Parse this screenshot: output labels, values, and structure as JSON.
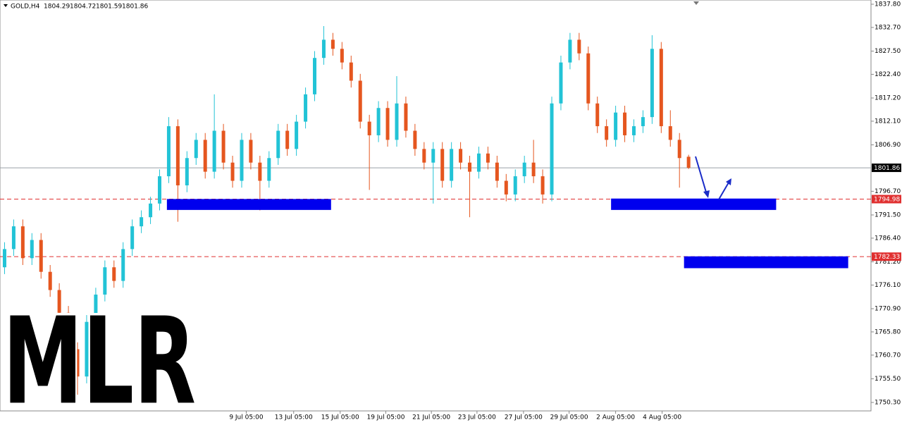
{
  "chart_data": {
    "type": "candlestick",
    "symbol": "GOLD,H4",
    "header_ohlc": [
      1804.29,
      1804.72,
      1801.59,
      1801.86
    ],
    "watermark": "MLR",
    "up_color": "#22c3d6",
    "down_color": "#e5561f",
    "x": [
      0,
      1,
      2,
      3,
      4,
      5,
      6,
      7,
      8,
      9,
      10,
      11,
      12,
      13,
      14,
      15,
      16,
      17,
      18,
      19,
      20,
      21,
      22,
      23,
      24,
      25,
      26,
      27,
      28,
      29,
      30,
      31,
      32,
      33,
      34,
      35,
      36,
      37,
      38,
      39,
      40,
      41,
      42,
      43,
      44,
      45,
      46,
      47,
      48,
      49,
      50,
      51,
      52,
      53,
      54,
      55,
      56,
      57,
      58,
      59,
      60,
      61,
      62,
      63,
      64,
      65,
      66,
      67,
      68,
      69,
      70,
      71,
      72,
      73,
      74,
      75
    ],
    "open": [
      1780,
      1784,
      1789,
      1782,
      1786,
      1779,
      1775,
      1770,
      1762,
      1756,
      1768,
      1774,
      1780,
      1777,
      1784,
      1789,
      1791,
      1794,
      1800,
      1811,
      1798,
      1804,
      1808,
      1801,
      1810,
      1803,
      1799,
      1808,
      1803,
      1799,
      1804,
      1810,
      1806,
      1812,
      1818,
      1826,
      1830,
      1828,
      1825,
      1821,
      1812,
      1809,
      1815,
      1808,
      1816,
      1810,
      1806,
      1803,
      1806,
      1799,
      1806,
      1803,
      1801,
      1805,
      1803,
      1799,
      1796,
      1800,
      1803,
      1800,
      1796,
      1816,
      1825,
      1830,
      1827,
      1816,
      1811,
      1808,
      1814,
      1809,
      1811,
      1813,
      1828,
      1811,
      1808,
      1804.29
    ],
    "high": [
      1785.5,
      1790.5,
      1790.5,
      1787.5,
      1787.5,
      1780.5,
      1776.5,
      1771.5,
      1763.5,
      1769.5,
      1775.5,
      1781.5,
      1781.5,
      1785.5,
      1790.5,
      1792.5,
      1795.5,
      1801.5,
      1813,
      1812.5,
      1805.5,
      1809.5,
      1809.5,
      1818,
      1811.5,
      1804.5,
      1809.5,
      1809.5,
      1804.5,
      1805.5,
      1811.5,
      1811.5,
      1813.5,
      1819.5,
      1827.5,
      1833,
      1831.5,
      1829.5,
      1826.5,
      1822.5,
      1813.5,
      1816.5,
      1816.5,
      1822,
      1817.5,
      1811.5,
      1807.5,
      1807.5,
      1807.5,
      1807.5,
      1807.5,
      1804.5,
      1806.5,
      1806.5,
      1804.5,
      1800.5,
      1801.5,
      1804.5,
      1808,
      1801.5,
      1817.5,
      1826.5,
      1831.5,
      1831.5,
      1828.5,
      1817.5,
      1812.5,
      1815.5,
      1815.5,
      1812.5,
      1814.5,
      1831,
      1829.5,
      1814.5,
      1809.5,
      1804.72
    ],
    "low": [
      1778.5,
      1782.5,
      1780.5,
      1780.5,
      1777.5,
      1773.5,
      1768.5,
      1760.5,
      1752,
      1754.5,
      1766.5,
      1772.5,
      1775.5,
      1775.5,
      1782.5,
      1787.5,
      1789.5,
      1792.5,
      1798.5,
      1790,
      1796.5,
      1802.5,
      1799.5,
      1799.5,
      1801.5,
      1797.5,
      1797.5,
      1801.5,
      1792.5,
      1797.5,
      1802.5,
      1804.5,
      1804.5,
      1810.5,
      1816.5,
      1824.5,
      1826.5,
      1823.5,
      1819.5,
      1810.5,
      1797,
      1807.5,
      1806.5,
      1806.5,
      1808.5,
      1804.5,
      1801.5,
      1794,
      1797.5,
      1797.5,
      1801.5,
      1791,
      1799.5,
      1801.5,
      1797.5,
      1794.5,
      1794.5,
      1798.5,
      1798.5,
      1794,
      1794.5,
      1814.5,
      1823.5,
      1825.5,
      1814.5,
      1809.5,
      1806.5,
      1806.5,
      1807.5,
      1807.5,
      1809.5,
      1811.5,
      1809.5,
      1806.5,
      1797.5,
      1801.59
    ],
    "close": [
      1784,
      1789,
      1782,
      1786,
      1779,
      1775,
      1770,
      1762,
      1756,
      1768,
      1774,
      1780,
      1777,
      1784,
      1789,
      1791,
      1794,
      1800,
      1811,
      1798,
      1804,
      1808,
      1801,
      1810,
      1803,
      1799,
      1808,
      1803,
      1799,
      1804,
      1810,
      1806,
      1812,
      1818,
      1826,
      1830,
      1828,
      1825,
      1821,
      1812,
      1809,
      1815,
      1808,
      1816,
      1810,
      1806,
      1803,
      1806,
      1799,
      1806,
      1803,
      1801,
      1805,
      1803,
      1799,
      1796,
      1800,
      1803,
      1800,
      1796,
      1816,
      1825,
      1830,
      1827,
      1816,
      1811,
      1808,
      1814,
      1809,
      1811,
      1813,
      1828,
      1811,
      1808,
      1804,
      1801.86
    ],
    "xlim": [
      -0.5,
      95
    ],
    "ylim": [
      1748.44,
      1838.73
    ],
    "xticks": [
      {
        "value": 26.5,
        "label": "9 Jul 05:00"
      },
      {
        "value": 31.7,
        "label": "13 Jul 05:00"
      },
      {
        "value": 36.8,
        "label": "15 Jul 05:00"
      },
      {
        "value": 41.8,
        "label": "19 Jul 05:00"
      },
      {
        "value": 46.8,
        "label": "21 Jul 05:00"
      },
      {
        "value": 51.8,
        "label": "23 Jul 05:00"
      },
      {
        "value": 56.9,
        "label": "27 Jul 05:00"
      },
      {
        "value": 61.9,
        "label": "29 Jul 05:00"
      },
      {
        "value": 67.0,
        "label": "2 Aug 05:00"
      },
      {
        "value": 72.1,
        "label": "4 Aug 05:00"
      }
    ],
    "yticks": [
      {
        "value": 1837.8,
        "label": "1837.80"
      },
      {
        "value": 1832.7,
        "label": "1832.70"
      },
      {
        "value": 1827.5,
        "label": "1827.50"
      },
      {
        "value": 1822.4,
        "label": "1822.40"
      },
      {
        "value": 1817.2,
        "label": "1817.20"
      },
      {
        "value": 1812.1,
        "label": "1812.10"
      },
      {
        "value": 1806.9,
        "label": "1806.90"
      },
      {
        "value": 1796.7,
        "label": "1796.70"
      },
      {
        "value": 1791.5,
        "label": "1791.50"
      },
      {
        "value": 1786.4,
        "label": "1786.40"
      },
      {
        "value": 1781.2,
        "label": "1781.20"
      },
      {
        "value": 1776.1,
        "label": "1776.10"
      },
      {
        "value": 1770.9,
        "label": "1770.90"
      },
      {
        "value": 1765.8,
        "label": "1765.80"
      },
      {
        "value": 1760.7,
        "label": "1760.70"
      },
      {
        "value": 1755.5,
        "label": "1755.50"
      },
      {
        "value": 1750.3,
        "label": "1750.30"
      }
    ],
    "levels": [
      {
        "value": 1801.86,
        "color": "#9aa0a6",
        "dashed": false,
        "label_bg": "#000000"
      },
      {
        "value": 1794.98,
        "color": "#e03030",
        "dashed": true,
        "label_bg": "#e03030"
      },
      {
        "value": 1782.33,
        "color": "#e03030",
        "dashed": true,
        "label_bg": "#e03030"
      }
    ],
    "zones": [
      {
        "x": [
          17.8,
          35.8
        ],
        "y": [
          1792.6,
          1795.0
        ],
        "color": "#0000ee"
      },
      {
        "x": [
          66.5,
          84.6
        ],
        "y": [
          1792.6,
          1795.1
        ],
        "color": "#0000ee"
      },
      {
        "x": [
          74.5,
          92.5
        ],
        "y": [
          1779.8,
          1782.4
        ],
        "color": "#0000ee"
      }
    ]
  }
}
